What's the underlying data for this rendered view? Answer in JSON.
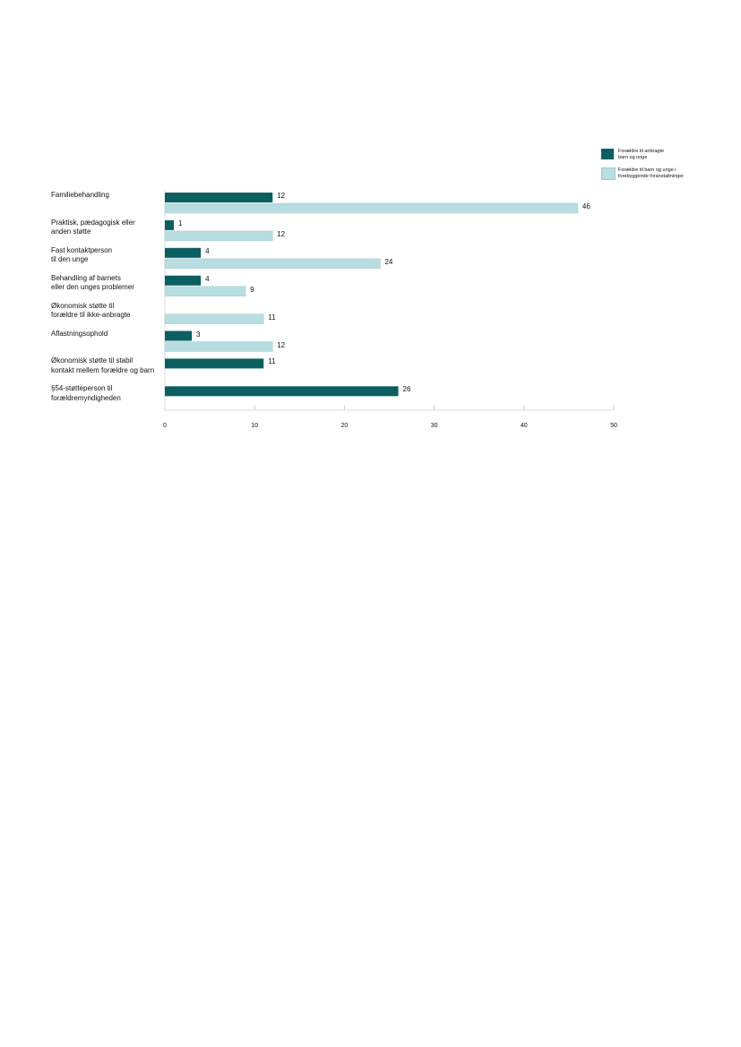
{
  "chart_data": {
    "type": "bar",
    "orientation": "horizontal",
    "categories": [
      "Familiebehandling",
      "Praktisk, pædagogisk eller\nanden støtte",
      "Fast kontaktperson\ntil den unge",
      "Behandling af barnets\neller den unges problemer",
      "Økonomisk støtte til\nforældre til ikke-anbragte",
      "Aflastningsophold",
      "Økonomisk støtte til stabil\nkontakt mellem forældre og barn",
      "§54-støtteperson til\nforældremyndigheden"
    ],
    "series": [
      {
        "name": "Forældre til anbragte\nbarn og unge",
        "color": "#0c5f60",
        "values": [
          12,
          1,
          4,
          4,
          null,
          3,
          11,
          26
        ]
      },
      {
        "name": "Forældre til barn og unge i\nforebyggende foranstaltninger",
        "color": "#b8dde0",
        "values": [
          46,
          12,
          24,
          9,
          11,
          12,
          null,
          null
        ]
      }
    ],
    "xlim": [
      0,
      50
    ],
    "xticks": [
      "0",
      "10",
      "20",
      "30",
      "40",
      "50"
    ],
    "legend": "top-right",
    "title": "",
    "xlabel": "",
    "ylabel": ""
  }
}
